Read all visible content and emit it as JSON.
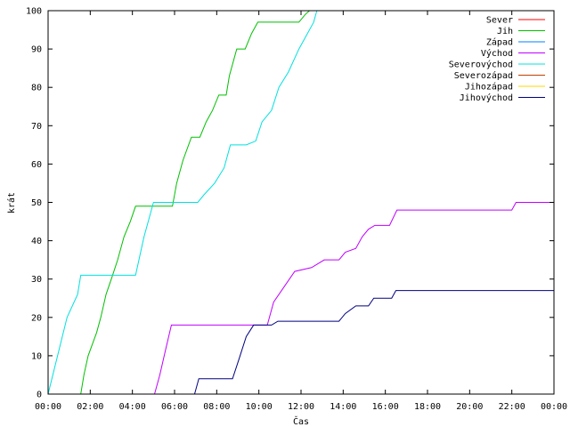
{
  "chart_data": {
    "type": "line",
    "title": "",
    "xlabel": "Čas",
    "ylabel": "krát",
    "xlim": [
      0,
      24
    ],
    "ylim": [
      0,
      100
    ],
    "x_ticks": [
      {
        "value": 0,
        "label": "00:00"
      },
      {
        "value": 2,
        "label": "02:00"
      },
      {
        "value": 4,
        "label": "04:00"
      },
      {
        "value": 6,
        "label": "06:00"
      },
      {
        "value": 8,
        "label": "08:00"
      },
      {
        "value": 10,
        "label": "10:00"
      },
      {
        "value": 12,
        "label": "12:00"
      },
      {
        "value": 14,
        "label": "14:00"
      },
      {
        "value": 16,
        "label": "16:00"
      },
      {
        "value": 18,
        "label": "18:00"
      },
      {
        "value": 20,
        "label": "20:00"
      },
      {
        "value": 22,
        "label": "22:00"
      },
      {
        "value": 24,
        "label": "00:00"
      }
    ],
    "y_ticks": [
      0,
      10,
      20,
      30,
      40,
      50,
      60,
      70,
      80,
      90,
      100
    ],
    "grid": false,
    "legend_position": "top-right",
    "series": [
      {
        "name": "Sever",
        "color": "#ff0000",
        "points": []
      },
      {
        "name": "Jih",
        "color": "#00c000",
        "points": [
          [
            1.55,
            0
          ],
          [
            1.7,
            5
          ],
          [
            1.9,
            10
          ],
          [
            2.3,
            16
          ],
          [
            2.5,
            20
          ],
          [
            2.75,
            26
          ],
          [
            3.0,
            30
          ],
          [
            3.3,
            35
          ],
          [
            3.6,
            41
          ],
          [
            3.9,
            45
          ],
          [
            4.15,
            49
          ],
          [
            5.0,
            49
          ],
          [
            5.9,
            49
          ],
          [
            6.1,
            55
          ],
          [
            6.4,
            61
          ],
          [
            6.8,
            67
          ],
          [
            7.2,
            67
          ],
          [
            7.5,
            71
          ],
          [
            7.8,
            74
          ],
          [
            8.1,
            78
          ],
          [
            8.45,
            78
          ],
          [
            8.6,
            83
          ],
          [
            8.95,
            90
          ],
          [
            9.35,
            90
          ],
          [
            9.65,
            94
          ],
          [
            9.95,
            97
          ],
          [
            11.9,
            97
          ],
          [
            12.2,
            99
          ],
          [
            12.4,
            100
          ]
        ]
      },
      {
        "name": "Západ",
        "color": "#0080ff",
        "points": []
      },
      {
        "name": "Východ",
        "color": "#c000ff",
        "points": [
          [
            5.05,
            0
          ],
          [
            5.3,
            5
          ],
          [
            5.55,
            11
          ],
          [
            5.85,
            18
          ],
          [
            9.4,
            18
          ],
          [
            10.4,
            18
          ],
          [
            10.7,
            24
          ],
          [
            11.2,
            28
          ],
          [
            11.7,
            32
          ],
          [
            12.5,
            33
          ],
          [
            13.1,
            35
          ],
          [
            13.8,
            35
          ],
          [
            14.1,
            37
          ],
          [
            14.6,
            38
          ],
          [
            14.9,
            41
          ],
          [
            15.2,
            43
          ],
          [
            15.5,
            44
          ],
          [
            16.2,
            44
          ],
          [
            16.55,
            48
          ],
          [
            22.0,
            48
          ],
          [
            22.2,
            50
          ],
          [
            24.0,
            50
          ]
        ]
      },
      {
        "name": "Severovýchod",
        "color": "#00e0e0",
        "points": [
          [
            0,
            0
          ],
          [
            0.45,
            10
          ],
          [
            0.9,
            20
          ],
          [
            1.4,
            26
          ],
          [
            1.55,
            31
          ],
          [
            4.15,
            31
          ],
          [
            4.55,
            41
          ],
          [
            4.8,
            46
          ],
          [
            5.0,
            50
          ],
          [
            7.1,
            50
          ],
          [
            7.4,
            52
          ],
          [
            7.9,
            55
          ],
          [
            8.35,
            59
          ],
          [
            8.65,
            65
          ],
          [
            9.4,
            65
          ],
          [
            9.85,
            66
          ],
          [
            10.15,
            71
          ],
          [
            10.6,
            74
          ],
          [
            10.95,
            80
          ],
          [
            11.4,
            84
          ],
          [
            11.9,
            90
          ],
          [
            12.3,
            94
          ],
          [
            12.6,
            97
          ],
          [
            12.75,
            100
          ]
        ]
      },
      {
        "name": "Severozápad",
        "color": "#c04000",
        "points": []
      },
      {
        "name": "Jihozápad",
        "color": "#ffd700",
        "points": []
      },
      {
        "name": "Jihovýchod",
        "color": "#000080",
        "points": [
          [
            6.95,
            0
          ],
          [
            7.15,
            4
          ],
          [
            8.75,
            4
          ],
          [
            9.05,
            9
          ],
          [
            9.4,
            15
          ],
          [
            9.75,
            18
          ],
          [
            10.6,
            18
          ],
          [
            10.9,
            19
          ],
          [
            13.8,
            19
          ],
          [
            14.1,
            21
          ],
          [
            14.6,
            23
          ],
          [
            15.2,
            23
          ],
          [
            15.45,
            25
          ],
          [
            16.3,
            25
          ],
          [
            16.5,
            27
          ],
          [
            24.0,
            27
          ]
        ]
      }
    ]
  }
}
